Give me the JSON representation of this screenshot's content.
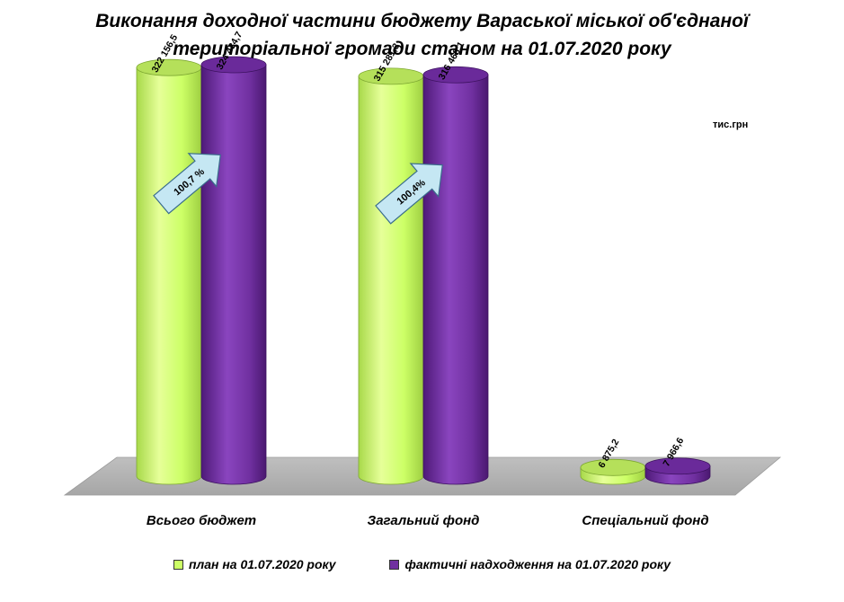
{
  "chart_data": {
    "type": "bar",
    "title_lines": [
      "Виконання доходної частини бюджету Вараської міської об'єднаної",
      "територіальної громади станом на 01.07.2020 року"
    ],
    "unit": "тис.грн",
    "categories": [
      "Всього бюджет",
      "Загальний фонд",
      "Спеціальний фонд"
    ],
    "series": [
      {
        "name": "план на 01.07.2020 року",
        "color": "#CCFF66",
        "values": [
          322156.5,
          315281.3,
          6875.2
        ],
        "labels": [
          "322 156,5",
          "315 281,3",
          "6 875,2"
        ]
      },
      {
        "name": "фактичні надходження на 01.07.2020 року",
        "color": "#7030A0",
        "values": [
          324434.7,
          316468.1,
          7966.6
        ],
        "labels": [
          "324 434,7",
          "316 468,1",
          "7 966,6"
        ]
      }
    ],
    "annotations": [
      "100,7 %",
      "100,4%",
      ""
    ],
    "ylim": [
      0,
      340000
    ],
    "grid": false,
    "legend_position": "bottom"
  }
}
